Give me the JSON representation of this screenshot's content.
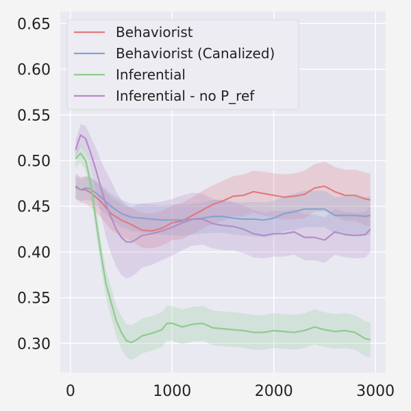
{
  "chart_data": {
    "type": "line",
    "title": "",
    "xlabel": "",
    "ylabel": "",
    "xlim": [
      -100,
      3100
    ],
    "ylim": [
      0.268,
      0.663
    ],
    "xticks": [
      0,
      1000,
      2000,
      3000
    ],
    "xtick_labels": [
      "0",
      "1000",
      "2000",
      "3000"
    ],
    "yticks": [
      0.3,
      0.35,
      0.4,
      0.45,
      0.5,
      0.55,
      0.6,
      0.65
    ],
    "ytick_labels": [
      "0.30",
      "0.35",
      "0.40",
      "0.45",
      "0.50",
      "0.55",
      "0.60",
      "0.65"
    ],
    "grid": true,
    "legend_position": "upper-left",
    "series": [
      {
        "name": "Behaviorist",
        "color": "#e07a7f",
        "x": [
          50,
          100,
          150,
          200,
          300,
          400,
          500,
          600,
          700,
          800,
          900,
          1000,
          1100,
          1200,
          1300,
          1400,
          1500,
          1600,
          1700,
          1800,
          1900,
          2000,
          2100,
          2200,
          2300,
          2400,
          2500,
          2600,
          2700,
          2800,
          2900,
          2950
        ],
        "y": [
          0.472,
          0.468,
          0.468,
          0.465,
          0.455,
          0.442,
          0.435,
          0.43,
          0.424,
          0.423,
          0.426,
          0.432,
          0.434,
          0.44,
          0.446,
          0.452,
          0.456,
          0.461,
          0.462,
          0.466,
          0.464,
          0.462,
          0.46,
          0.461,
          0.463,
          0.47,
          0.472,
          0.466,
          0.462,
          0.462,
          0.458,
          0.457
        ],
        "band": [
          0.014,
          0.014,
          0.015,
          0.016,
          0.017,
          0.018,
          0.018,
          0.018,
          0.019,
          0.019,
          0.019,
          0.019,
          0.02,
          0.02,
          0.021,
          0.021,
          0.022,
          0.022,
          0.023,
          0.023,
          0.024,
          0.024,
          0.025,
          0.025,
          0.026,
          0.026,
          0.027,
          0.027,
          0.028,
          0.028,
          0.029,
          0.029
        ]
      },
      {
        "name": "Behaviorist (Canalized)",
        "color": "#85a4ce",
        "x": [
          50,
          100,
          150,
          200,
          300,
          400,
          500,
          600,
          700,
          800,
          900,
          1000,
          1100,
          1200,
          1300,
          1400,
          1500,
          1600,
          1700,
          1800,
          1900,
          2000,
          2100,
          2200,
          2300,
          2400,
          2500,
          2600,
          2700,
          2800,
          2900,
          2950
        ],
        "y": [
          0.471,
          0.468,
          0.47,
          0.469,
          0.46,
          0.45,
          0.442,
          0.438,
          0.437,
          0.436,
          0.435,
          0.435,
          0.435,
          0.436,
          0.437,
          0.439,
          0.439,
          0.437,
          0.436,
          0.436,
          0.435,
          0.437,
          0.442,
          0.444,
          0.447,
          0.447,
          0.447,
          0.44,
          0.44,
          0.44,
          0.439,
          0.44
        ],
        "band": [
          0.012,
          0.012,
          0.013,
          0.013,
          0.014,
          0.014,
          0.015,
          0.015,
          0.016,
          0.016,
          0.016,
          0.017,
          0.017,
          0.017,
          0.017,
          0.018,
          0.018,
          0.018,
          0.018,
          0.019,
          0.019,
          0.019,
          0.019,
          0.02,
          0.02,
          0.02,
          0.02,
          0.02,
          0.021,
          0.021,
          0.021,
          0.021
        ]
      },
      {
        "name": "Inferential",
        "color": "#8fca8f",
        "x": [
          50,
          100,
          150,
          200,
          250,
          300,
          350,
          400,
          450,
          500,
          550,
          600,
          650,
          700,
          800,
          900,
          950,
          1000,
          1100,
          1200,
          1300,
          1400,
          1500,
          1600,
          1700,
          1800,
          1900,
          2000,
          2100,
          2200,
          2300,
          2400,
          2500,
          2600,
          2700,
          2800,
          2900,
          2950
        ],
        "y": [
          0.502,
          0.508,
          0.5,
          0.475,
          0.435,
          0.398,
          0.365,
          0.345,
          0.325,
          0.312,
          0.303,
          0.301,
          0.304,
          0.308,
          0.311,
          0.315,
          0.322,
          0.322,
          0.318,
          0.321,
          0.322,
          0.317,
          0.316,
          0.315,
          0.314,
          0.312,
          0.312,
          0.314,
          0.313,
          0.312,
          0.314,
          0.318,
          0.315,
          0.313,
          0.314,
          0.312,
          0.305,
          0.304
        ],
        "band": [
          0.01,
          0.01,
          0.011,
          0.012,
          0.013,
          0.014,
          0.015,
          0.016,
          0.017,
          0.018,
          0.018,
          0.019,
          0.019,
          0.019,
          0.019,
          0.019,
          0.019,
          0.019,
          0.019,
          0.019,
          0.019,
          0.019,
          0.019,
          0.019,
          0.019,
          0.019,
          0.019,
          0.019,
          0.019,
          0.019,
          0.019,
          0.019,
          0.019,
          0.019,
          0.019,
          0.019,
          0.019,
          0.019
        ]
      },
      {
        "name": "Inferential - no P_ref",
        "color": "#b58bc6",
        "x": [
          50,
          100,
          150,
          200,
          250,
          300,
          350,
          400,
          450,
          500,
          550,
          600,
          650,
          700,
          800,
          900,
          1000,
          1100,
          1200,
          1300,
          1400,
          1500,
          1600,
          1700,
          1800,
          1900,
          2000,
          2100,
          2200,
          2300,
          2400,
          2500,
          2600,
          2700,
          2800,
          2900,
          2950
        ],
        "y": [
          0.512,
          0.528,
          0.524,
          0.508,
          0.49,
          0.47,
          0.452,
          0.438,
          0.425,
          0.416,
          0.411,
          0.411,
          0.414,
          0.418,
          0.42,
          0.423,
          0.427,
          0.432,
          0.436,
          0.436,
          0.431,
          0.429,
          0.428,
          0.425,
          0.42,
          0.418,
          0.42,
          0.42,
          0.422,
          0.416,
          0.416,
          0.413,
          0.422,
          0.419,
          0.418,
          0.419,
          0.425
        ],
        "band": [
          0.01,
          0.012,
          0.014,
          0.018,
          0.024,
          0.03,
          0.036,
          0.04,
          0.041,
          0.041,
          0.04,
          0.038,
          0.037,
          0.035,
          0.034,
          0.032,
          0.031,
          0.03,
          0.029,
          0.028,
          0.027,
          0.027,
          0.026,
          0.026,
          0.026,
          0.025,
          0.025,
          0.025,
          0.025,
          0.025,
          0.025,
          0.025,
          0.025,
          0.025,
          0.025,
          0.025,
          0.025
        ]
      }
    ]
  }
}
